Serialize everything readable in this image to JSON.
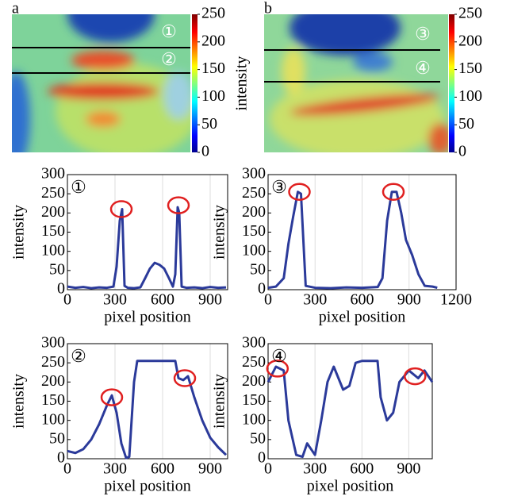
{
  "chart_data": [
    {
      "type": "image",
      "panel": "a",
      "markers": [
        "①",
        "②"
      ],
      "colorbar": {
        "label": "intensity",
        "lim": [
          0,
          250
        ],
        "ticks": [
          0,
          50,
          100,
          150,
          200,
          250
        ]
      }
    },
    {
      "type": "image",
      "panel": "b",
      "markers": [
        "③",
        "④"
      ],
      "colorbar": {
        "lim": [
          0,
          250
        ],
        "ticks": [
          0,
          50,
          100,
          150,
          200,
          250
        ]
      }
    },
    {
      "type": "line",
      "marker": "①",
      "color": "#2b3a9a",
      "xlabel": "pixel position",
      "ylabel": "intensity",
      "x": [
        0,
        50,
        100,
        150,
        200,
        250,
        290,
        310,
        330,
        345,
        360,
        380,
        420,
        460,
        490,
        520,
        550,
        580,
        610,
        640,
        665,
        680,
        695,
        705,
        720,
        750,
        800,
        850,
        900,
        950,
        1000
      ],
      "values": [
        8,
        5,
        7,
        4,
        6,
        5,
        8,
        60,
        180,
        210,
        10,
        5,
        4,
        6,
        30,
        55,
        70,
        65,
        55,
        30,
        8,
        40,
        215,
        200,
        8,
        5,
        6,
        4,
        7,
        5,
        6
      ],
      "xlim": [
        0,
        1010
      ],
      "ylim": [
        0,
        300
      ],
      "xticks": [
        0,
        300,
        600,
        900
      ],
      "yticks": [
        0,
        50,
        100,
        150,
        200,
        250,
        300
      ],
      "highlights": {
        "x": [
          340,
          700
        ],
        "y": [
          210,
          220
        ]
      }
    },
    {
      "type": "line",
      "marker": "③",
      "color": "#2b3a9a",
      "xlabel": "pixel position",
      "ylabel": "intensity",
      "x": [
        0,
        50,
        100,
        130,
        160,
        190,
        210,
        240,
        300,
        400,
        500,
        600,
        700,
        730,
        760,
        790,
        820,
        850,
        880,
        920,
        960,
        1000,
        1050,
        1080
      ],
      "values": [
        5,
        8,
        30,
        120,
        190,
        255,
        250,
        10,
        5,
        4,
        6,
        5,
        7,
        30,
        180,
        255,
        255,
        200,
        130,
        90,
        40,
        10,
        8,
        5
      ],
      "xlim": [
        0,
        1200
      ],
      "ylim": [
        0,
        300
      ],
      "xticks": [
        0,
        300,
        600,
        900,
        1200
      ],
      "yticks": [
        0,
        50,
        100,
        150,
        200,
        250,
        300
      ],
      "highlights": {
        "x": [
          200,
          800
        ],
        "y": [
          255,
          255
        ]
      }
    },
    {
      "type": "line",
      "marker": "②",
      "color": "#2b3a9a",
      "xlabel": "pixel position",
      "ylabel": "intensity",
      "x": [
        0,
        50,
        100,
        150,
        200,
        250,
        280,
        310,
        340,
        370,
        390,
        420,
        440,
        500,
        600,
        680,
        700,
        730,
        760,
        800,
        850,
        900,
        950,
        1000
      ],
      "values": [
        20,
        15,
        25,
        50,
        90,
        140,
        165,
        120,
        40,
        2,
        5,
        200,
        255,
        255,
        255,
        255,
        210,
        205,
        215,
        160,
        100,
        55,
        30,
        10
      ],
      "xlim": [
        0,
        1010
      ],
      "ylim": [
        0,
        300
      ],
      "xticks": [
        0,
        300,
        600,
        900
      ],
      "yticks": [
        0,
        50,
        100,
        150,
        200,
        250,
        300
      ],
      "highlights": {
        "x": [
          280,
          740
        ],
        "y": [
          160,
          210
        ]
      }
    },
    {
      "type": "line",
      "marker": "④",
      "color": "#2b3a9a",
      "xlabel": "pixel position",
      "ylabel": "intensity",
      "x": [
        0,
        50,
        100,
        130,
        180,
        220,
        250,
        300,
        340,
        380,
        420,
        480,
        520,
        560,
        600,
        700,
        720,
        760,
        800,
        840,
        900,
        960,
        1000,
        1050
      ],
      "values": [
        200,
        240,
        230,
        100,
        10,
        5,
        40,
        10,
        100,
        200,
        240,
        180,
        190,
        250,
        255,
        255,
        160,
        100,
        120,
        200,
        230,
        210,
        230,
        200
      ],
      "xlim": [
        0,
        1050
      ],
      "ylim": [
        0,
        300
      ],
      "xticks": [
        0,
        300,
        600,
        900
      ],
      "yticks": [
        0,
        50,
        100,
        150,
        200,
        250,
        300
      ],
      "highlights": {
        "x": [
          60,
          940
        ],
        "y": [
          235,
          215
        ]
      }
    }
  ]
}
